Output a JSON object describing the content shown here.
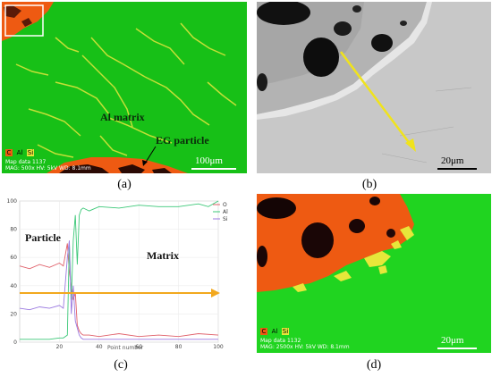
{
  "panels": {
    "a": {
      "caption": "(a)",
      "label_matrix": "Al matrix",
      "label_particle": "EG particle",
      "scale": "100μm",
      "meta_line1": "Map data 1137",
      "meta_line2": "MAG: 500x  HV: 5kV  WD: 8.1mm",
      "chips": [
        "C",
        "Al",
        "Si"
      ]
    },
    "b": {
      "caption": "(b)",
      "scale": "20μm"
    },
    "c": {
      "caption": "(c)",
      "label_particle": "Particle",
      "label_matrix": "Matrix",
      "x_axis_label": "Point number",
      "x_ticks": [
        "20",
        "40",
        "60",
        "80",
        "100"
      ],
      "y_ticks": [
        "0",
        "20",
        "40",
        "60",
        "80",
        "100"
      ],
      "legend": [
        "O",
        "Al",
        "Si"
      ]
    },
    "d": {
      "caption": "(d)",
      "scale": "20μm",
      "meta_line1": "Map data 1132",
      "meta_line2": "MAG: 2500x  HV: 5kV  WD: 8.1mm",
      "chips": [
        "C",
        "Al",
        "Si"
      ]
    }
  },
  "chart_data": {
    "type": "line",
    "xlabel": "Point number",
    "xlim": [
      0,
      100
    ],
    "ylim": [
      0,
      100
    ],
    "series": [
      {
        "name": "O",
        "color": "#e0606a",
        "x": [
          0,
          5,
          10,
          15,
          20,
          22,
          24,
          25,
          26,
          27,
          28,
          29,
          30,
          31,
          32,
          35,
          40,
          50,
          60,
          70,
          80,
          90,
          100
        ],
        "y": [
          54,
          52,
          55,
          53,
          56,
          54,
          70,
          50,
          40,
          30,
          35,
          12,
          8,
          6,
          5,
          5,
          4,
          6,
          4,
          5,
          4,
          6,
          5
        ]
      },
      {
        "name": "Al",
        "color": "#3cc878",
        "x": [
          0,
          5,
          10,
          15,
          20,
          22,
          24,
          25,
          26,
          27,
          28,
          29,
          30,
          31,
          32,
          35,
          40,
          50,
          60,
          70,
          80,
          90,
          95,
          100
        ],
        "y": [
          2,
          2,
          2,
          2,
          3,
          3,
          5,
          70,
          30,
          72,
          90,
          55,
          90,
          94,
          95,
          93,
          96,
          95,
          97,
          96,
          96,
          98,
          96,
          100
        ]
      },
      {
        "name": "Si",
        "color": "#9b7ae0",
        "x": [
          0,
          5,
          10,
          15,
          20,
          22,
          24,
          25,
          26,
          27,
          28,
          29,
          30,
          31,
          32,
          35,
          40,
          50,
          60,
          70,
          80,
          90,
          100
        ],
        "y": [
          24,
          23,
          25,
          24,
          26,
          24,
          60,
          72,
          20,
          40,
          15,
          10,
          5,
          3,
          2,
          2,
          2,
          2,
          2,
          2,
          2,
          2,
          2
        ]
      }
    ]
  }
}
